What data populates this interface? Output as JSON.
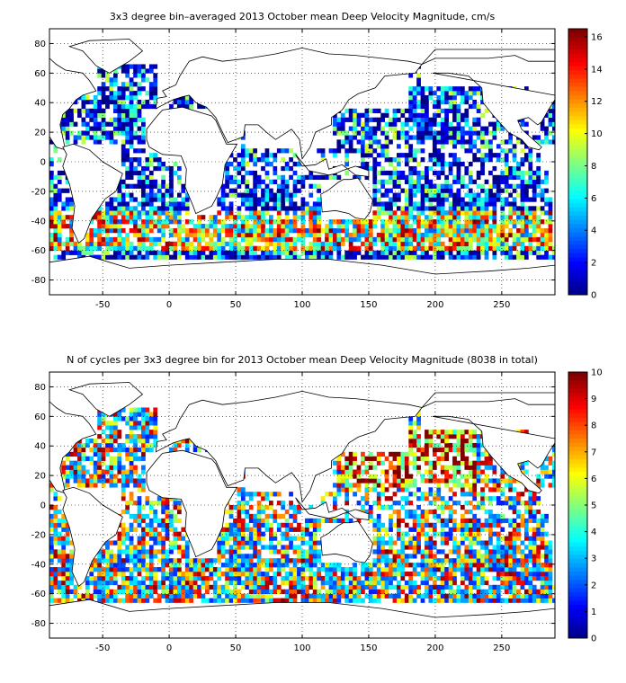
{
  "figure": {
    "panels": [
      {
        "title": "3x3 degree bin–averaged 2013 October mean Deep Velocity Magnitude, cm/s",
        "x_ticks": [
          -50,
          0,
          50,
          100,
          150,
          200,
          250
        ],
        "y_ticks": [
          80,
          60,
          40,
          20,
          0,
          -20,
          -40,
          -60,
          -80
        ],
        "colorbar_ticks": [
          16,
          14,
          12,
          10,
          8,
          6,
          4,
          2,
          0
        ],
        "colorbar_range": [
          0,
          16.5
        ],
        "field": "velocity"
      },
      {
        "title": "N of cycles per 3x3 degree bin for 2013 October mean Deep Velocity Magnitude (8038 in total)",
        "x_ticks": [
          -50,
          0,
          50,
          100,
          150,
          200,
          250
        ],
        "y_ticks": [
          80,
          60,
          40,
          20,
          0,
          -20,
          -40,
          -60,
          -80
        ],
        "colorbar_ticks": [
          10,
          9,
          8,
          7,
          6,
          5,
          4,
          3,
          2,
          1,
          0
        ],
        "colorbar_range": [
          0,
          10
        ],
        "field": "count"
      }
    ]
  },
  "chart_data": [
    {
      "type": "heatmap",
      "title": "3x3 degree bin–averaged 2013 October mean Deep Velocity Magnitude, cm/s",
      "xlim": [
        -90,
        290
      ],
      "ylim": [
        -90,
        90
      ],
      "bin_size_deg": 3,
      "colorbar": {
        "min": 0,
        "max": 16.5,
        "colormap": "jet"
      },
      "grid": true,
      "basemap": "world coastlines"
    },
    {
      "type": "heatmap",
      "title": "N of cycles per 3x3 degree bin for 2013 October mean Deep Velocity Magnitude (8038 in total)",
      "xlim": [
        -90,
        290
      ],
      "ylim": [
        -90,
        90
      ],
      "bin_size_deg": 3,
      "total_cycles": 8038,
      "colorbar": {
        "min": 0,
        "max": 10,
        "colormap": "jet"
      },
      "grid": true,
      "basemap": "world coastlines"
    }
  ]
}
